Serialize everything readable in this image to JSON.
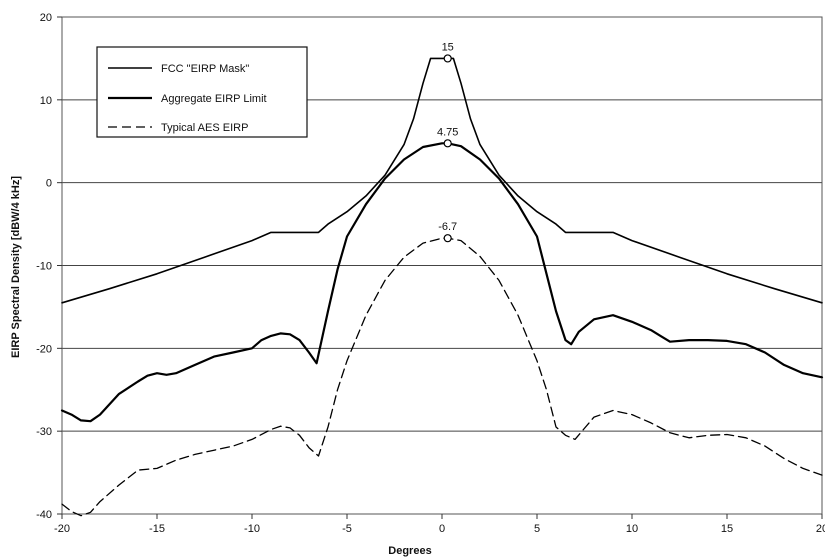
{
  "chart_data": {
    "type": "line",
    "xlabel": "Degrees",
    "ylabel": "EIRP Spectral Density [dBW/4 kHz]",
    "xlim": [
      -20,
      20
    ],
    "ylim": [
      -40,
      20
    ],
    "x_ticks": [
      -20,
      -15,
      -10,
      -5,
      0,
      5,
      10,
      15,
      20
    ],
    "y_ticks": [
      -40,
      -30,
      -20,
      -10,
      0,
      10,
      20
    ],
    "grid": "horizontal",
    "legend_position": "top-left",
    "series": [
      {
        "name": "FCC \"EIRP Mask\"",
        "style": "solid",
        "stroke_width": 1.6,
        "color": "#000000",
        "x": [
          -20,
          -17.5,
          -15,
          -12.5,
          -10,
          -9,
          -8,
          -7,
          -6.5,
          -6,
          -5,
          -4,
          -3,
          -2,
          -1.5,
          -1,
          -0.6,
          -0.3,
          0,
          0.3,
          0.6,
          1,
          1.5,
          2,
          3,
          4,
          5,
          6,
          6.5,
          7,
          8,
          9,
          10,
          12.5,
          15,
          17.5,
          20
        ],
        "y": [
          -14.5,
          -12.8,
          -11,
          -9,
          -7,
          -6,
          -6,
          -6,
          -6,
          -5,
          -3.5,
          -1.6,
          0.9,
          4.6,
          7.7,
          12,
          15,
          15,
          15,
          15,
          15,
          12,
          7.7,
          4.6,
          0.9,
          -1.6,
          -3.5,
          -5,
          -6,
          -6,
          -6,
          -6,
          -7,
          -9,
          -11,
          -12.8,
          -14.5
        ]
      },
      {
        "name": "Aggregate EIRP Limit",
        "style": "solid",
        "stroke_width": 2.2,
        "color": "#000000",
        "x": [
          -20,
          -19.5,
          -19,
          -18.5,
          -18,
          -17,
          -16,
          -15.5,
          -15,
          -14.5,
          -14,
          -13,
          -12,
          -11,
          -10,
          -9.5,
          -9,
          -8.5,
          -8,
          -7.5,
          -7,
          -6.6,
          -6,
          -5.5,
          -5,
          -4,
          -3,
          -2,
          -1,
          0,
          0.3,
          1,
          2,
          3,
          4,
          5,
          5.5,
          6,
          6.5,
          6.8,
          7.2,
          8,
          9,
          10,
          11,
          11.5,
          12,
          13,
          14,
          15,
          16,
          17,
          18,
          19,
          20
        ],
        "y": [
          -27.5,
          -28,
          -28.7,
          -28.8,
          -28,
          -25.5,
          -24,
          -23.3,
          -23,
          -23.2,
          -23,
          -22,
          -21,
          -20.5,
          -20,
          -19,
          -18.5,
          -18.2,
          -18.3,
          -19,
          -20.5,
          -21.8,
          -15.5,
          -10.5,
          -6.5,
          -2.6,
          0.5,
          2.8,
          4.3,
          4.75,
          4.75,
          4.4,
          2.8,
          0.5,
          -2.6,
          -6.5,
          -11,
          -15.5,
          -19,
          -19.5,
          -18,
          -16.5,
          -16,
          -16.8,
          -17.8,
          -18.5,
          -19.2,
          -19,
          -19,
          -19.1,
          -19.5,
          -20.5,
          -22,
          -23,
          -23.5
        ]
      },
      {
        "name": "Typical AES EIRP",
        "style": "dashed",
        "stroke_width": 1.3,
        "color": "#000000",
        "x": [
          -20,
          -19.5,
          -19,
          -18.5,
          -18,
          -17,
          -16,
          -15,
          -14,
          -13,
          -12,
          -11,
          -10,
          -9,
          -8.5,
          -8,
          -7.5,
          -7,
          -6.5,
          -6,
          -5.5,
          -5,
          -4,
          -3,
          -2,
          -1,
          0,
          0.3,
          1,
          2,
          3,
          4,
          5,
          5.5,
          6,
          6.5,
          7,
          8,
          9,
          10,
          11,
          12,
          13,
          14,
          15,
          16,
          17,
          18,
          19,
          20
        ],
        "y": [
          -38.8,
          -39.7,
          -40.2,
          -39.8,
          -38.5,
          -36.5,
          -34.7,
          -34.5,
          -33.5,
          -32.8,
          -32.3,
          -31.8,
          -31,
          -29.8,
          -29.4,
          -29.6,
          -30.5,
          -32,
          -33,
          -29.5,
          -25,
          -21.5,
          -16,
          -11.8,
          -9,
          -7.3,
          -6.7,
          -6.7,
          -7,
          -8.9,
          -11.8,
          -16,
          -21.5,
          -25,
          -29.5,
          -30.5,
          -31,
          -28.3,
          -27.5,
          -28,
          -29,
          -30.2,
          -30.8,
          -30.5,
          -30.4,
          -30.8,
          -31.8,
          -33.3,
          -34.5,
          -35.3
        ]
      }
    ],
    "annotations": [
      {
        "label": "15",
        "x": 0.3,
        "y": 15
      },
      {
        "label": "4.75",
        "x": 0.3,
        "y": 4.75
      },
      {
        "label": "-6.7",
        "x": 0.3,
        "y": -6.7
      }
    ]
  }
}
